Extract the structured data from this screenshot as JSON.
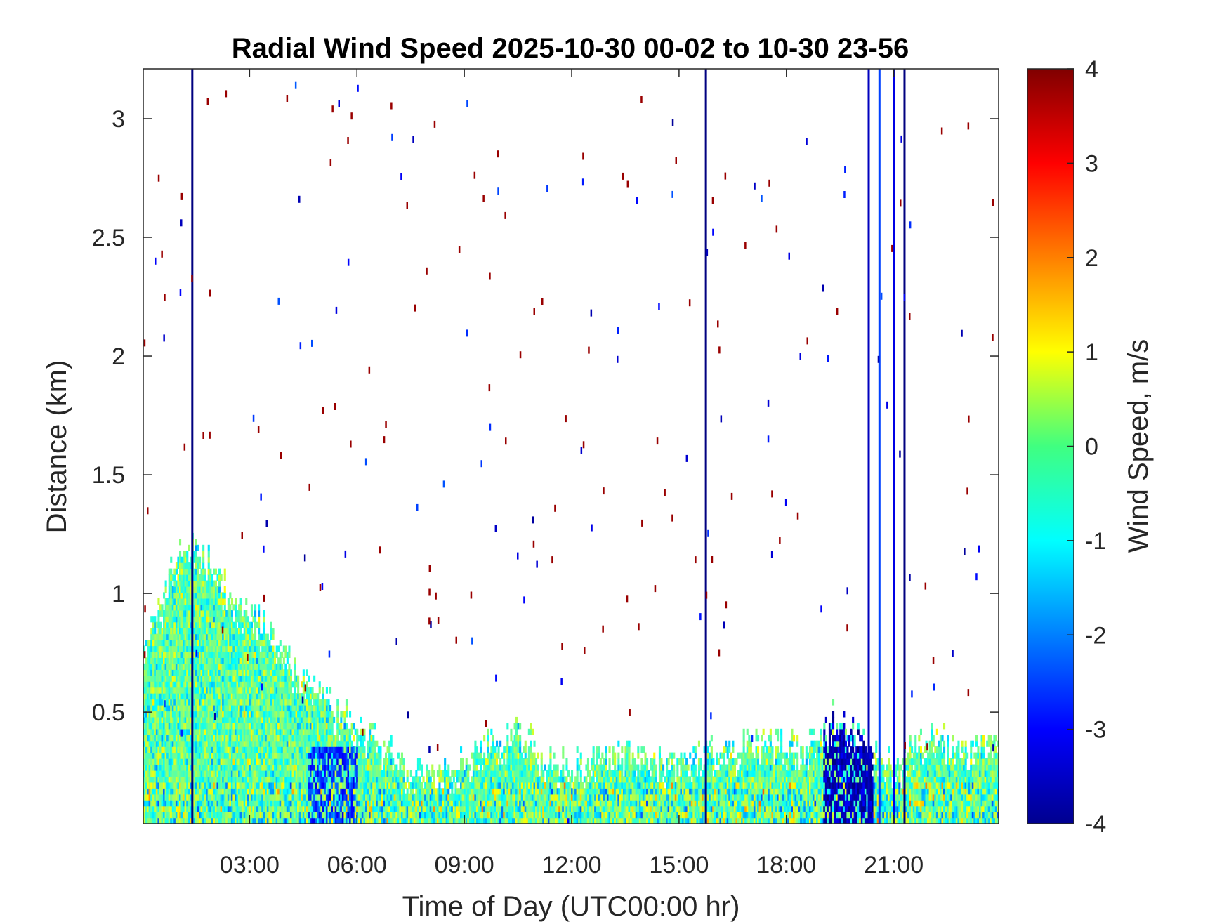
{
  "chart_data": {
    "type": "heatmap",
    "title": "Radial Wind Speed 2025-10-30 00-02 to 10-30 23-56",
    "xlabel": "Time of Day (UTC00:00 hr)",
    "ylabel": "Distance (km)",
    "colorbar_label": "Wind Speed, m/s",
    "xlim": [
      0.03,
      23.93
    ],
    "ylim": [
      0.03,
      3.21
    ],
    "clim": [
      -4,
      4
    ],
    "colormap": "jet",
    "x_ticks": [
      3,
      6,
      9,
      12,
      15,
      18,
      21
    ],
    "x_tick_labels": [
      "03:00",
      "06:00",
      "09:00",
      "12:00",
      "15:00",
      "18:00",
      "21:00"
    ],
    "y_ticks": [
      0.5,
      1,
      1.5,
      2,
      2.5,
      3
    ],
    "y_tick_labels": [
      "0.5",
      "1",
      "1.5",
      "2",
      "2.5",
      "3"
    ],
    "colorbar_ticks": [
      -4,
      -3,
      -2,
      -1,
      0,
      1,
      2,
      3,
      4
    ],
    "colorbar_tick_labels": [
      "-4",
      "-3",
      "-2",
      "-1",
      "0",
      "1",
      "2",
      "3",
      "4"
    ],
    "background_color": "#ffffff",
    "boundary_layer_top_km": [
      [
        0.03,
        0.75
      ],
      [
        1.0,
        1.2
      ],
      [
        1.5,
        1.2
      ],
      [
        2.5,
        1.0
      ],
      [
        3.5,
        0.85
      ],
      [
        4.5,
        0.65
      ],
      [
        5.5,
        0.5
      ],
      [
        6.5,
        0.4
      ],
      [
        7.5,
        0.25
      ],
      [
        8.5,
        0.25
      ],
      [
        9.5,
        0.35
      ],
      [
        10.5,
        0.45
      ],
      [
        11.5,
        0.28
      ],
      [
        12.5,
        0.3
      ],
      [
        13.5,
        0.35
      ],
      [
        14.5,
        0.3
      ],
      [
        15.5,
        0.32
      ],
      [
        16.5,
        0.35
      ],
      [
        17.5,
        0.38
      ],
      [
        18.5,
        0.35
      ],
      [
        19.3,
        0.5
      ],
      [
        20.0,
        0.4
      ],
      [
        21.0,
        0.3
      ],
      [
        22.0,
        0.4
      ],
      [
        23.0,
        0.35
      ],
      [
        23.93,
        0.38
      ]
    ],
    "vertical_streaks": [
      {
        "time_hr": 1.4,
        "top_km": 3.21,
        "value_ms": -4
      },
      {
        "time_hr": 15.75,
        "top_km": 3.21,
        "value_ms": -4
      },
      {
        "time_hr": 20.3,
        "top_km": 3.21,
        "value_ms": -3.5
      },
      {
        "time_hr": 20.6,
        "top_km": 3.21,
        "value_ms": -2.5
      },
      {
        "time_hr": 21.0,
        "top_km": 3.21,
        "value_ms": -3.2
      },
      {
        "time_hr": 21.3,
        "top_km": 3.21,
        "value_ms": -4
      }
    ],
    "strong_negative_region": {
      "time_hr": [
        19.0,
        20.4
      ],
      "distance_km": [
        0.03,
        0.6
      ],
      "value_ms": -3.5
    },
    "morning_negative_region": {
      "time_hr": [
        4.6,
        6.0
      ],
      "distance_km": [
        0.03,
        0.35
      ],
      "value_ms": -2.6
    },
    "scattered_noise_pixel_count": 220
  }
}
